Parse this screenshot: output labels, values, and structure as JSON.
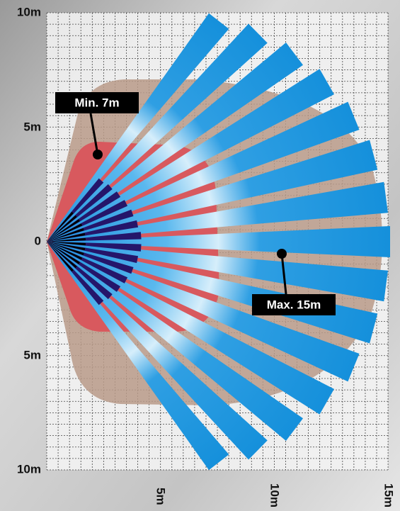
{
  "y_axis": {
    "labels": [
      "10m",
      "5m",
      "0",
      "5m",
      "10m"
    ]
  },
  "x_axis": {
    "labels": [
      "5m",
      "10m",
      "15m"
    ]
  },
  "callouts": [
    {
      "label": "Min. 7m"
    },
    {
      "label": "Max. 15m"
    }
  ]
}
